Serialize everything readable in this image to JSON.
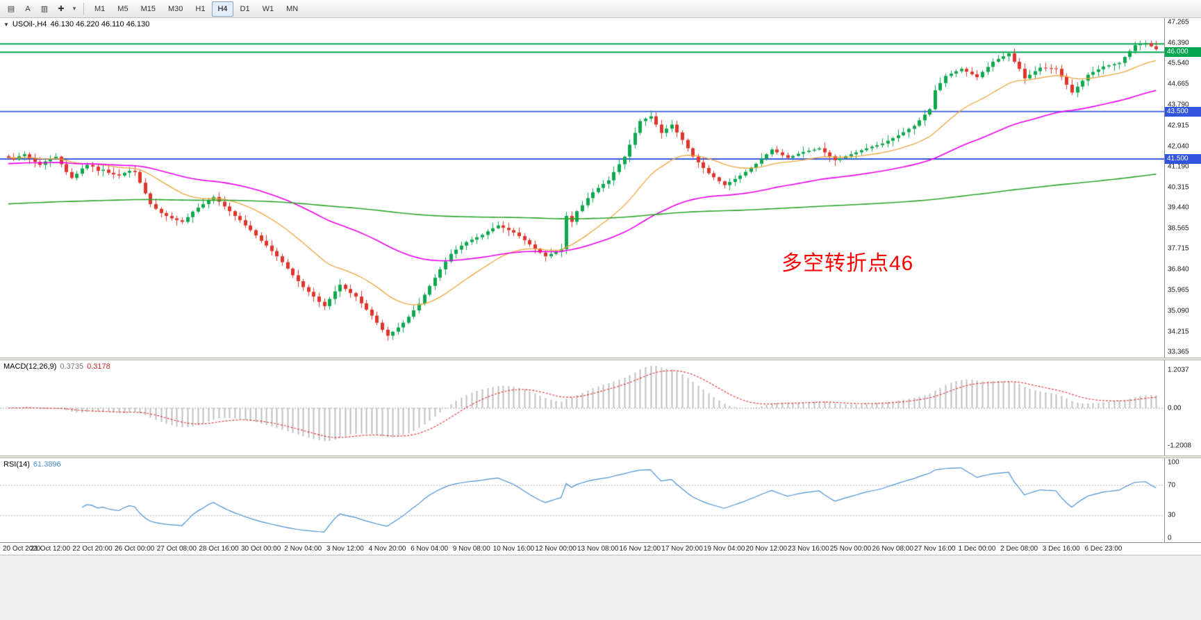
{
  "toolbar": {
    "icons": [
      {
        "name": "window-handle",
        "glyph": "▤"
      },
      {
        "name": "font",
        "glyph": "A"
      },
      {
        "name": "template",
        "glyph": "▥"
      },
      {
        "name": "crosshair",
        "glyph": "✚"
      },
      {
        "name": "dropdown-caret",
        "glyph": "▾"
      }
    ],
    "timeframes": [
      "M1",
      "M5",
      "M15",
      "M30",
      "H1",
      "H4",
      "D1",
      "W1",
      "MN"
    ],
    "active_timeframe": "H4"
  },
  "chart_data": {
    "type": "candlestick",
    "symbol_title": "USOil-,H4",
    "ohlc_display": "46.130 46.220 46.110 46.130",
    "annotation": {
      "text": "多空转折点46",
      "color": "#FF0000"
    },
    "colors": {
      "up": "#0FA84F",
      "down": "#E0352B",
      "wick_up": "#0FA84F",
      "wick_down": "#E0352B",
      "level_green": "#00A651",
      "level_blue": "#3355DD",
      "ma_fast": "#F0A43C",
      "ma_medium": "#EE00EE",
      "ma_slow": "#2BA52B",
      "macd_hist": "#BFBFBF",
      "macd_signal": "#E03131",
      "rsi_line": "#4A90D2"
    },
    "price_ticks": [
      "47.265",
      "46.390",
      "45.540",
      "44.665",
      "43.790",
      "42.915",
      "42.040",
      "41.190",
      "40.315",
      "39.440",
      "38.565",
      "37.715",
      "36.840",
      "35.965",
      "35.090",
      "34.215",
      "33.365"
    ],
    "levels": [
      {
        "price": 46.35,
        "color": "#00A651",
        "tag": null
      },
      {
        "price": 46.0,
        "color": "#00A651",
        "tag": "46.000"
      },
      {
        "price": 43.5,
        "color": "#3355DD",
        "tag": "43.500"
      },
      {
        "price": 41.5,
        "color": "#3355DD",
        "tag": "41.500"
      }
    ],
    "moving_averages": [
      {
        "name": "fast",
        "period": 21,
        "seed": null,
        "color": "#F0A43C",
        "width": 1.3
      },
      {
        "name": "medium",
        "period": 65,
        "seed": 41.3,
        "color": "#EE00EE",
        "width": 1.6
      },
      {
        "name": "slow",
        "period": 400,
        "seed": 39.6,
        "color": "#2BA52B",
        "width": 1.6
      }
    ],
    "closes": [
      41.55,
      41.48,
      41.62,
      41.7,
      41.52,
      41.38,
      41.25,
      41.4,
      41.52,
      41.6,
      41.28,
      40.95,
      40.7,
      40.88,
      41.1,
      41.25,
      41.18,
      41.0,
      41.05,
      40.92,
      40.85,
      40.8,
      40.92,
      41.0,
      40.95,
      40.5,
      40.05,
      39.6,
      39.4,
      39.22,
      39.1,
      39.0,
      38.92,
      38.85,
      39.05,
      39.28,
      39.45,
      39.6,
      39.78,
      39.9,
      39.7,
      39.5,
      39.3,
      39.1,
      38.92,
      38.7,
      38.5,
      38.28,
      38.05,
      37.85,
      37.62,
      37.4,
      37.15,
      36.88,
      36.6,
      36.35,
      36.1,
      35.9,
      35.7,
      35.48,
      35.3,
      35.6,
      35.92,
      36.2,
      36.02,
      35.85,
      35.7,
      35.42,
      35.15,
      34.9,
      34.6,
      34.3,
      34.05,
      34.22,
      34.4,
      34.6,
      34.85,
      35.12,
      35.4,
      35.78,
      36.15,
      36.5,
      36.85,
      37.18,
      37.5,
      37.68,
      37.85,
      38.0,
      38.1,
      38.2,
      38.3,
      38.45,
      38.58,
      38.7,
      38.6,
      38.5,
      38.4,
      38.25,
      38.08,
      37.9,
      37.72,
      37.55,
      37.4,
      37.5,
      37.6,
      37.7,
      39.1,
      38.85,
      39.3,
      39.55,
      39.85,
      40.1,
      40.28,
      40.45,
      40.6,
      40.95,
      41.28,
      41.6,
      42.1,
      42.6,
      43.1,
      43.2,
      43.3,
      42.95,
      42.6,
      42.78,
      42.95,
      42.62,
      42.3,
      41.95,
      41.6,
      41.36,
      41.12,
      40.9,
      40.73,
      40.56,
      40.4,
      40.53,
      40.66,
      40.8,
      40.96,
      41.13,
      41.3,
      41.5,
      41.7,
      41.9,
      41.78,
      41.66,
      41.55,
      41.63,
      41.72,
      41.8,
      41.85,
      41.9,
      41.95,
      41.78,
      41.62,
      41.45,
      41.53,
      41.62,
      41.7,
      41.78,
      41.87,
      41.95,
      42.02,
      42.08,
      42.15,
      42.27,
      42.38,
      42.5,
      42.63,
      42.77,
      42.9,
      43.13,
      43.37,
      43.6,
      44.4,
      44.7,
      45.0,
      45.1,
      45.2,
      45.3,
      45.18,
      45.07,
      44.95,
      45.17,
      45.38,
      45.6,
      45.72,
      45.83,
      45.95,
      45.6,
      45.3,
      44.9,
      45.05,
      45.2,
      45.35,
      45.33,
      45.32,
      45.3,
      44.97,
      44.63,
      44.3,
      44.55,
      44.8,
      45.05,
      45.17,
      45.28,
      45.4,
      45.45,
      45.5,
      45.55,
      45.8,
      46.05,
      46.3,
      46.34,
      46.38,
      46.25,
      46.13
    ],
    "x_labels": [
      "20 Oct 2020",
      "21 Oct 12:00",
      "22 Oct 20:00",
      "26 Oct 00:00",
      "27 Oct 08:00",
      "28 Oct 16:00",
      "30 Oct 00:00",
      "2 Nov 04:00",
      "3 Nov 12:00",
      "4 Nov 20:00",
      "6 Nov 04:00",
      "9 Nov 08:00",
      "10 Nov 16:00",
      "12 Nov 00:00",
      "13 Nov 08:00",
      "16 Nov 12:00",
      "17 Nov 20:00",
      "19 Nov 04:00",
      "20 Nov 12:00",
      "23 Nov 16:00",
      "25 Nov 00:00",
      "26 Nov 08:00",
      "27 Nov 16:00",
      "1 Dec 00:00",
      "2 Dec 08:00",
      "3 Dec 16:00",
      "6 Dec 23:00"
    ],
    "x_label_step": 8,
    "subcharts": [
      {
        "type": "macd",
        "label": "MACD(12,26,9)",
        "values": [
          "0.3735",
          "0.3178"
        ],
        "fast": 12,
        "slow": 26,
        "signal": 9,
        "ticks": [
          "1.2037",
          "0.00",
          "-1.2008"
        ]
      },
      {
        "type": "rsi",
        "label": "RSI(14)",
        "value": "61.3896",
        "period": 14,
        "ticks": [
          "100",
          "70",
          "30",
          "0"
        ],
        "level_lines": [
          70,
          30
        ]
      }
    ]
  }
}
